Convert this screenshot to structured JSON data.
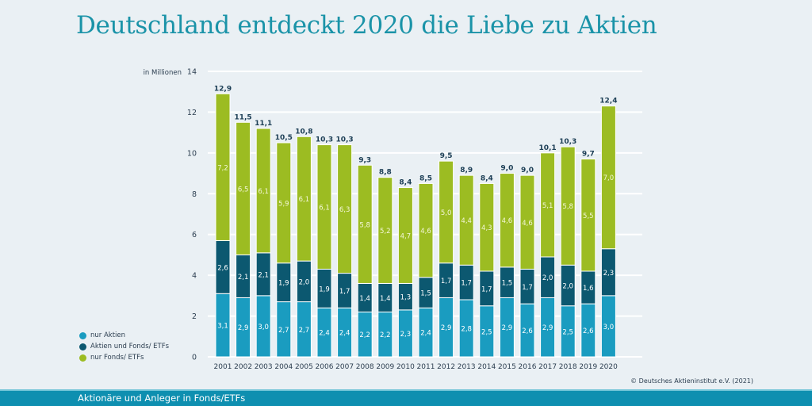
{
  "title": "Deutschland entdeckt 2020 die Liebe zu Aktien",
  "footer": "Aktionäre und Anleger in Fonds/ETFs",
  "copyright": "© Deutsches Aktieninstitut e.V. (2021)",
  "colors": {
    "nur_aktien": "#1a9cc0",
    "aktien_und_fonds": "#0c5870",
    "nur_fonds": "#9cbc22",
    "total_label": "#1c3e55"
  },
  "chart_data": {
    "type": "bar",
    "stacked": true,
    "title": "Deutschland entdeckt 2020 die Liebe zu Aktien",
    "ylabel": "in Millionen",
    "xlabel": "",
    "ylim": [
      0,
      14
    ],
    "yticks": [
      0,
      2,
      4,
      6,
      8,
      10,
      12,
      14
    ],
    "grid": true,
    "legend_position": "bottom-left",
    "categories": [
      "2001",
      "2002",
      "2003",
      "2004",
      "2005",
      "2006",
      "2007",
      "2008",
      "2009",
      "2010",
      "2011",
      "2012",
      "2013",
      "2014",
      "2015",
      "2016",
      "2017",
      "2018",
      "2019",
      "2020"
    ],
    "series": [
      {
        "name": "nur Aktien",
        "values": [
          3.1,
          2.9,
          3.0,
          2.7,
          2.7,
          2.4,
          2.4,
          2.2,
          2.2,
          2.3,
          2.4,
          2.9,
          2.8,
          2.5,
          2.9,
          2.6,
          2.9,
          2.5,
          2.6,
          3.0
        ],
        "labels": [
          "3,1",
          "2,9",
          "3,0",
          "2,7",
          "2,7",
          "2,4",
          "2,4",
          "2,2",
          "2,2",
          "2,3",
          "2,4",
          "2,9",
          "2,8",
          "2,5",
          "2,9",
          "2,6",
          "2,9",
          "2,5",
          "2,6",
          "3,0"
        ]
      },
      {
        "name": "Aktien und Fonds/ ETFs",
        "values": [
          2.6,
          2.1,
          2.1,
          1.9,
          2.0,
          1.9,
          1.7,
          1.4,
          1.4,
          1.3,
          1.5,
          1.7,
          1.7,
          1.7,
          1.5,
          1.7,
          2.0,
          2.0,
          1.6,
          2.3
        ],
        "labels": [
          "2,6",
          "2,1",
          "2,1",
          "1,9",
          "2,0",
          "1,9",
          "1,7",
          "1,4",
          "1,4",
          "1,3",
          "1,5",
          "1,7",
          "1,7",
          "1,7",
          "1,5",
          "1,7",
          "2,0",
          "2,0",
          "1,6",
          "2,3"
        ]
      },
      {
        "name": "nur Fonds/ ETFs",
        "values": [
          7.2,
          6.5,
          6.1,
          5.9,
          6.1,
          6.1,
          6.3,
          5.8,
          5.2,
          4.7,
          4.6,
          5.0,
          4.4,
          4.3,
          4.6,
          4.6,
          5.1,
          5.8,
          5.5,
          7.0
        ],
        "labels": [
          "7,2",
          "6,5",
          "6,1",
          "5,9",
          "6,1",
          "6,1",
          "6,3",
          "5,8",
          "5,2",
          "4,7",
          "4,6",
          "5,0",
          "4,4",
          "4,3",
          "4,6",
          "4,6",
          "5,1",
          "5,8",
          "5,5",
          "7,0"
        ]
      }
    ],
    "totals": [
      12.9,
      11.5,
      11.1,
      10.5,
      10.8,
      10.3,
      10.3,
      9.3,
      8.8,
      8.4,
      8.5,
      9.5,
      8.9,
      8.4,
      9.0,
      9.0,
      10.1,
      10.3,
      9.7,
      12.4
    ],
    "total_labels": [
      "12,9",
      "11,5",
      "11,1",
      "10,5",
      "10,8",
      "10,3",
      "10,3",
      "9,3",
      "8,8",
      "8,4",
      "8,5",
      "9,5",
      "8,9",
      "8,4",
      "9,0",
      "9,0",
      "10,1",
      "10,3",
      "9,7",
      "12,4"
    ]
  }
}
